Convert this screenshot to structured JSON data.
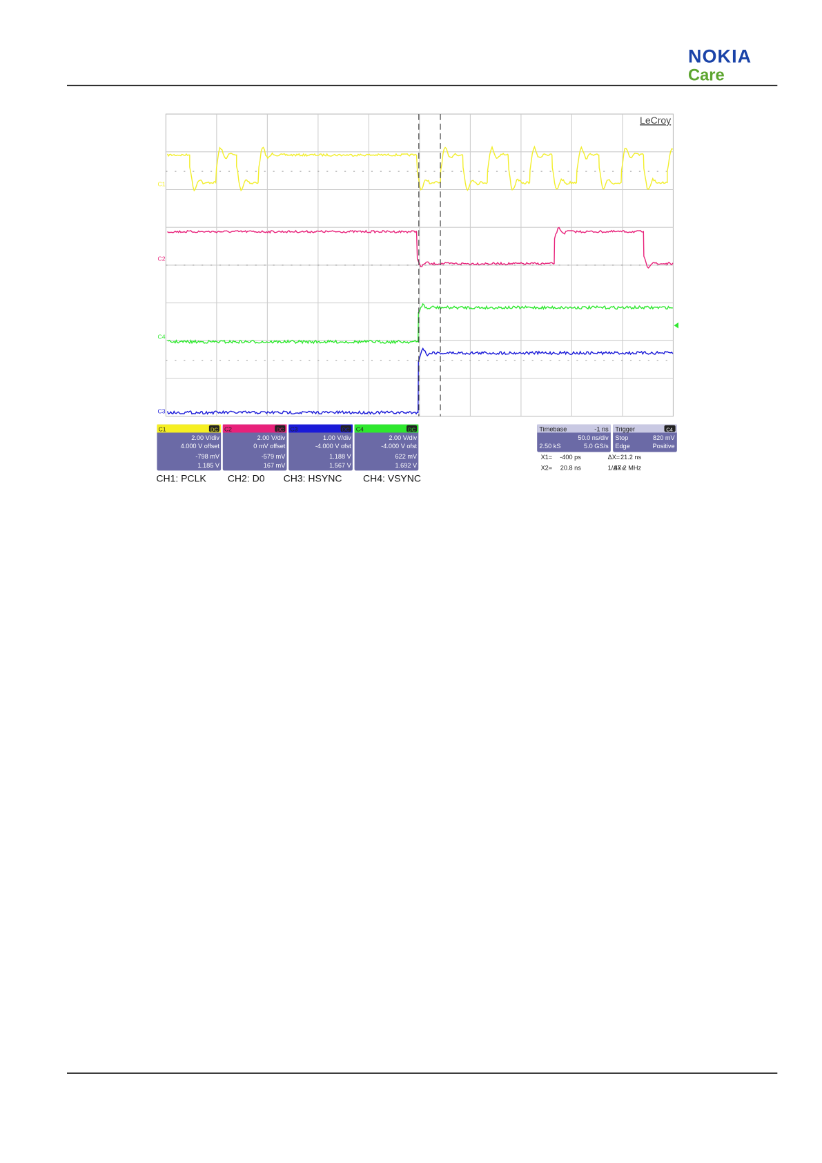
{
  "header": {
    "brand": "NOKIA",
    "sub": "Care"
  },
  "figure": {
    "maker": "LeCroy",
    "channels": [
      {
        "id": "C1",
        "coupling": "DC",
        "vdiv": "2.00 V/div",
        "offset": "4.000 V offset",
        "min": "-798 mV",
        "max": "1.185 V",
        "caption": "CH1: PCLK",
        "trace_label": "C1"
      },
      {
        "id": "C2",
        "coupling": "DC",
        "vdiv": "2.00 V/div",
        "offset": "0 mV offset",
        "min": "-579 mV",
        "max": "167 mV",
        "caption": "CH2: D0",
        "trace_label": "C2"
      },
      {
        "id": "C3",
        "coupling": "DC",
        "vdiv": "1.00 V/div",
        "offset": "-4.000 V ofst",
        "min": "1.188 V",
        "max": "1.567 V",
        "caption": "CH3: HSYNC",
        "trace_label": "C3"
      },
      {
        "id": "C4",
        "coupling": "DC",
        "vdiv": "2.00 V/div",
        "offset": "-4.000 V ofst",
        "min": "622 mV",
        "max": "1.692 V",
        "caption": "CH4: VSYNC",
        "trace_label": "C4"
      }
    ],
    "timebase": {
      "title": "Timebase",
      "delay": "-1 ns",
      "div": "50.0 ns/div",
      "samples": "2.50 kS",
      "rate": "5.0 GS/s"
    },
    "trigger": {
      "title": "Trigger",
      "source": "C4",
      "mode": "Stop",
      "level": "820 mV",
      "type": "Edge",
      "slope": "Positive"
    },
    "cursors": [
      [
        "X1=",
        "-400 ps",
        "ΔX=",
        "21.2 ns"
      ],
      [
        "X2=",
        "20.8 ns",
        "1/ΔX=",
        "47.2 MHz"
      ]
    ]
  }
}
